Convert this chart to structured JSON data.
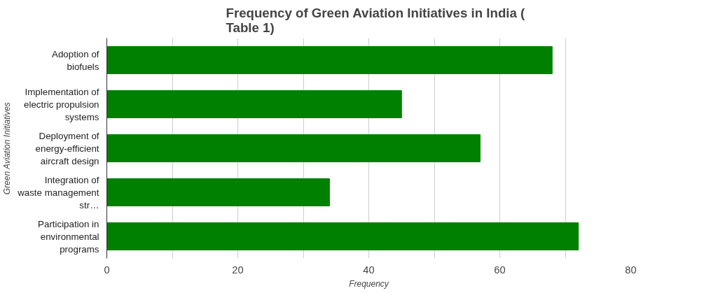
{
  "chart_data": {
    "type": "bar",
    "orientation": "horizontal",
    "title": "Frequency of Green Aviation Initiatives in India ( Table 1)",
    "xlabel": "Frequency",
    "ylabel": "Green Aviation Initiatives",
    "categories": [
      "Adoption of biofuels",
      "Implementation of electric propulsion systems",
      "Deployment of energy-efficient aircraft design",
      "Integration of waste management str…",
      "Participation in environmental programs"
    ],
    "series": [
      {
        "color": "#008000",
        "values": [
          68,
          45,
          57,
          34,
          72
        ]
      }
    ],
    "xlim": [
      0,
      80
    ],
    "xticks": [
      0,
      {
        "value": 10,
        "label": null
      },
      20,
      {
        "value": 30,
        "label": null
      },
      40,
      {
        "value": 50,
        "label": null
      },
      60,
      {
        "value": 70,
        "label": null
      },
      80
    ],
    "grid": "x"
  }
}
